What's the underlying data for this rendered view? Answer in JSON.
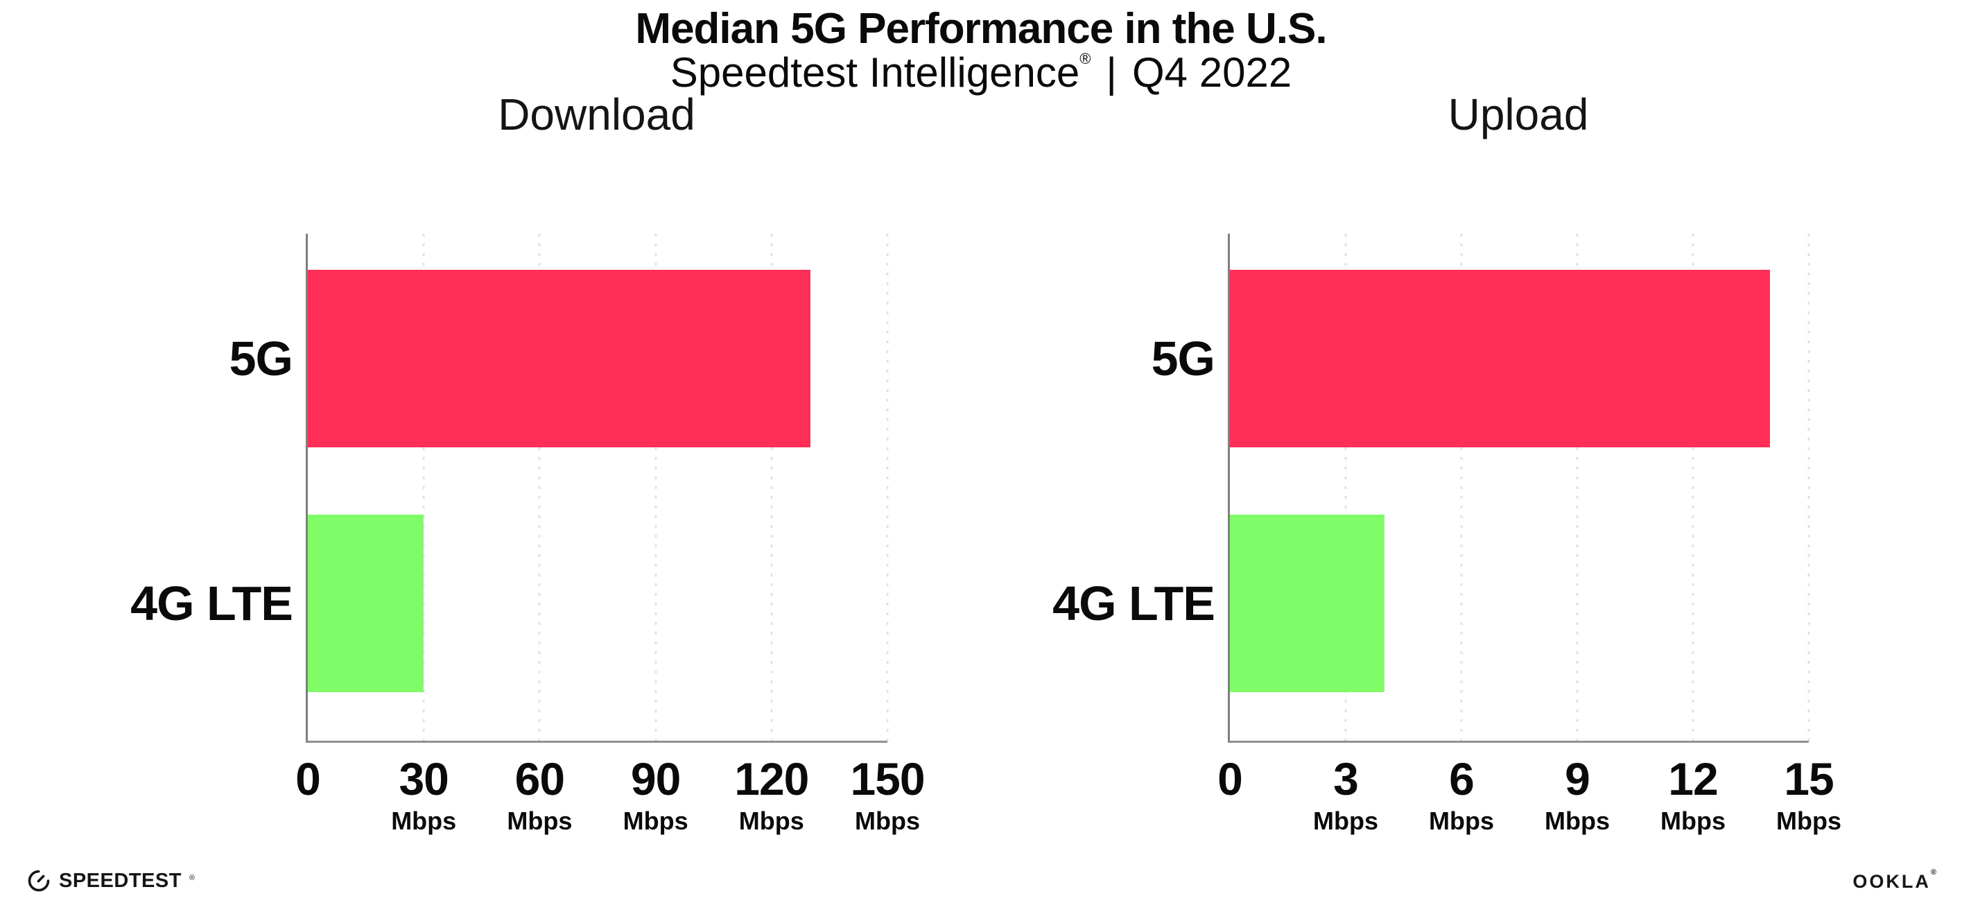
{
  "header": {
    "title": "Median 5G Performance in the U.S.",
    "subtitle_brand": "Speedtest Intelligence",
    "subtitle_reg": "®",
    "subtitle_divider": "|",
    "subtitle_period": "Q4 2022"
  },
  "colors": {
    "bar_5g": "#FF2F58",
    "bar_4g_lte": "#80FC68",
    "axis": "#8f8f8f",
    "gridline": "#E1E1EB",
    "text": "#0A0A0A"
  },
  "chart_data": [
    {
      "type": "bar",
      "orientation": "horizontal",
      "title": "Download",
      "categories": [
        "5G",
        "4G LTE"
      ],
      "values": [
        130,
        30
      ],
      "unit": "Mbps",
      "xlim": [
        0,
        150
      ],
      "xticks": [
        0,
        30,
        60,
        90,
        120,
        150
      ],
      "xtick_unit": "Mbps",
      "bar_colors": [
        "#FF2F58",
        "#80FC68"
      ],
      "grid": "vertical-dotted",
      "legend": "none"
    },
    {
      "type": "bar",
      "orientation": "horizontal",
      "title": "Upload",
      "categories": [
        "5G",
        "4G LTE"
      ],
      "values": [
        14,
        4
      ],
      "unit": "Mbps",
      "xlim": [
        0,
        15
      ],
      "xticks": [
        0,
        3,
        6,
        9,
        12,
        15
      ],
      "xtick_unit": "Mbps",
      "bar_colors": [
        "#FF2F58",
        "#80FC68"
      ],
      "grid": "vertical-dotted",
      "legend": "none"
    }
  ],
  "footer": {
    "speedtest_label": "SPEEDTEST",
    "speedtest_mark": "®",
    "ookla_label": "OOKLA",
    "ookla_mark": "®"
  }
}
